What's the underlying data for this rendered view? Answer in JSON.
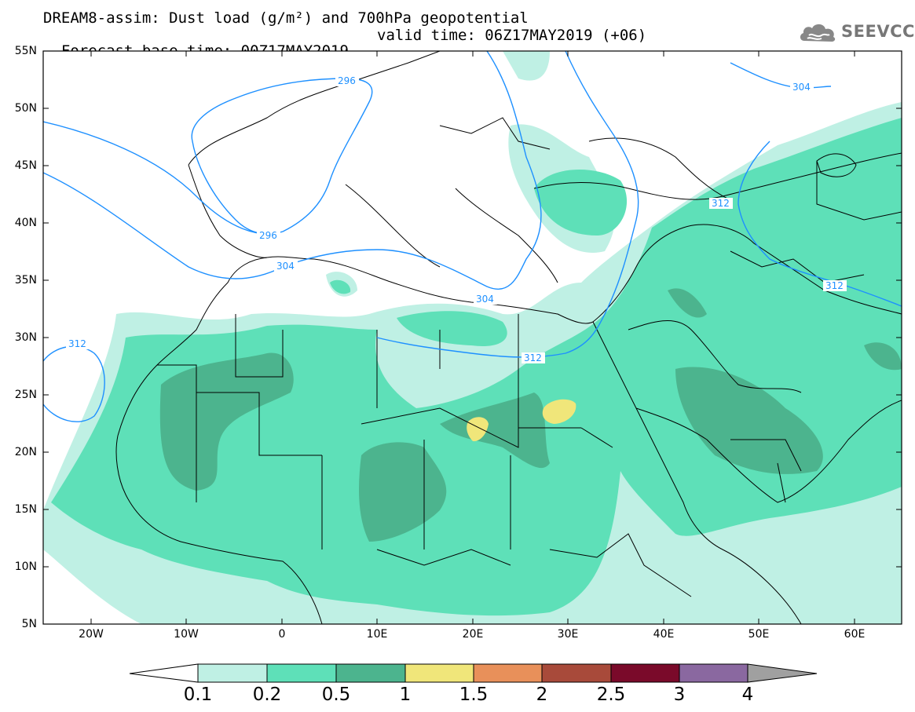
{
  "title": {
    "line1": "DREAM8-assim: Dust load (g/m²) and 700hPa geopotential",
    "line2_base": "Forecast base time: 00Z17MAY2019",
    "line2_valid": "valid time: 06Z17MAY2019 (+06)"
  },
  "logo": {
    "icon": "cloud-logo-icon",
    "text": "SEEVCCC"
  },
  "axes": {
    "lat_labels": [
      "55N",
      "50N",
      "45N",
      "40N",
      "35N",
      "30N",
      "25N",
      "20N",
      "15N",
      "10N",
      "5N"
    ],
    "lon_labels": [
      "20W",
      "10W",
      "0",
      "10E",
      "20E",
      "30E",
      "40E",
      "50E",
      "60E"
    ],
    "lat_range": [
      5,
      55
    ],
    "lon_range": [
      -25,
      65
    ]
  },
  "contours": {
    "geopotential_labels": [
      "296",
      "296",
      "304",
      "304",
      "312",
      "312",
      "312",
      "304",
      "312"
    ]
  },
  "colorbar": {
    "labels": [
      "0.1",
      "0.2",
      "0.5",
      "1",
      "1.5",
      "2",
      "2.5",
      "3",
      "4"
    ],
    "colors": [
      "#bff0e4",
      "#5ee0b8",
      "#4cb48e",
      "#f0e67a",
      "#e8905a",
      "#a84a3a",
      "#7a0a2a",
      "#8a68a0",
      "#a0a0a0"
    ]
  }
}
